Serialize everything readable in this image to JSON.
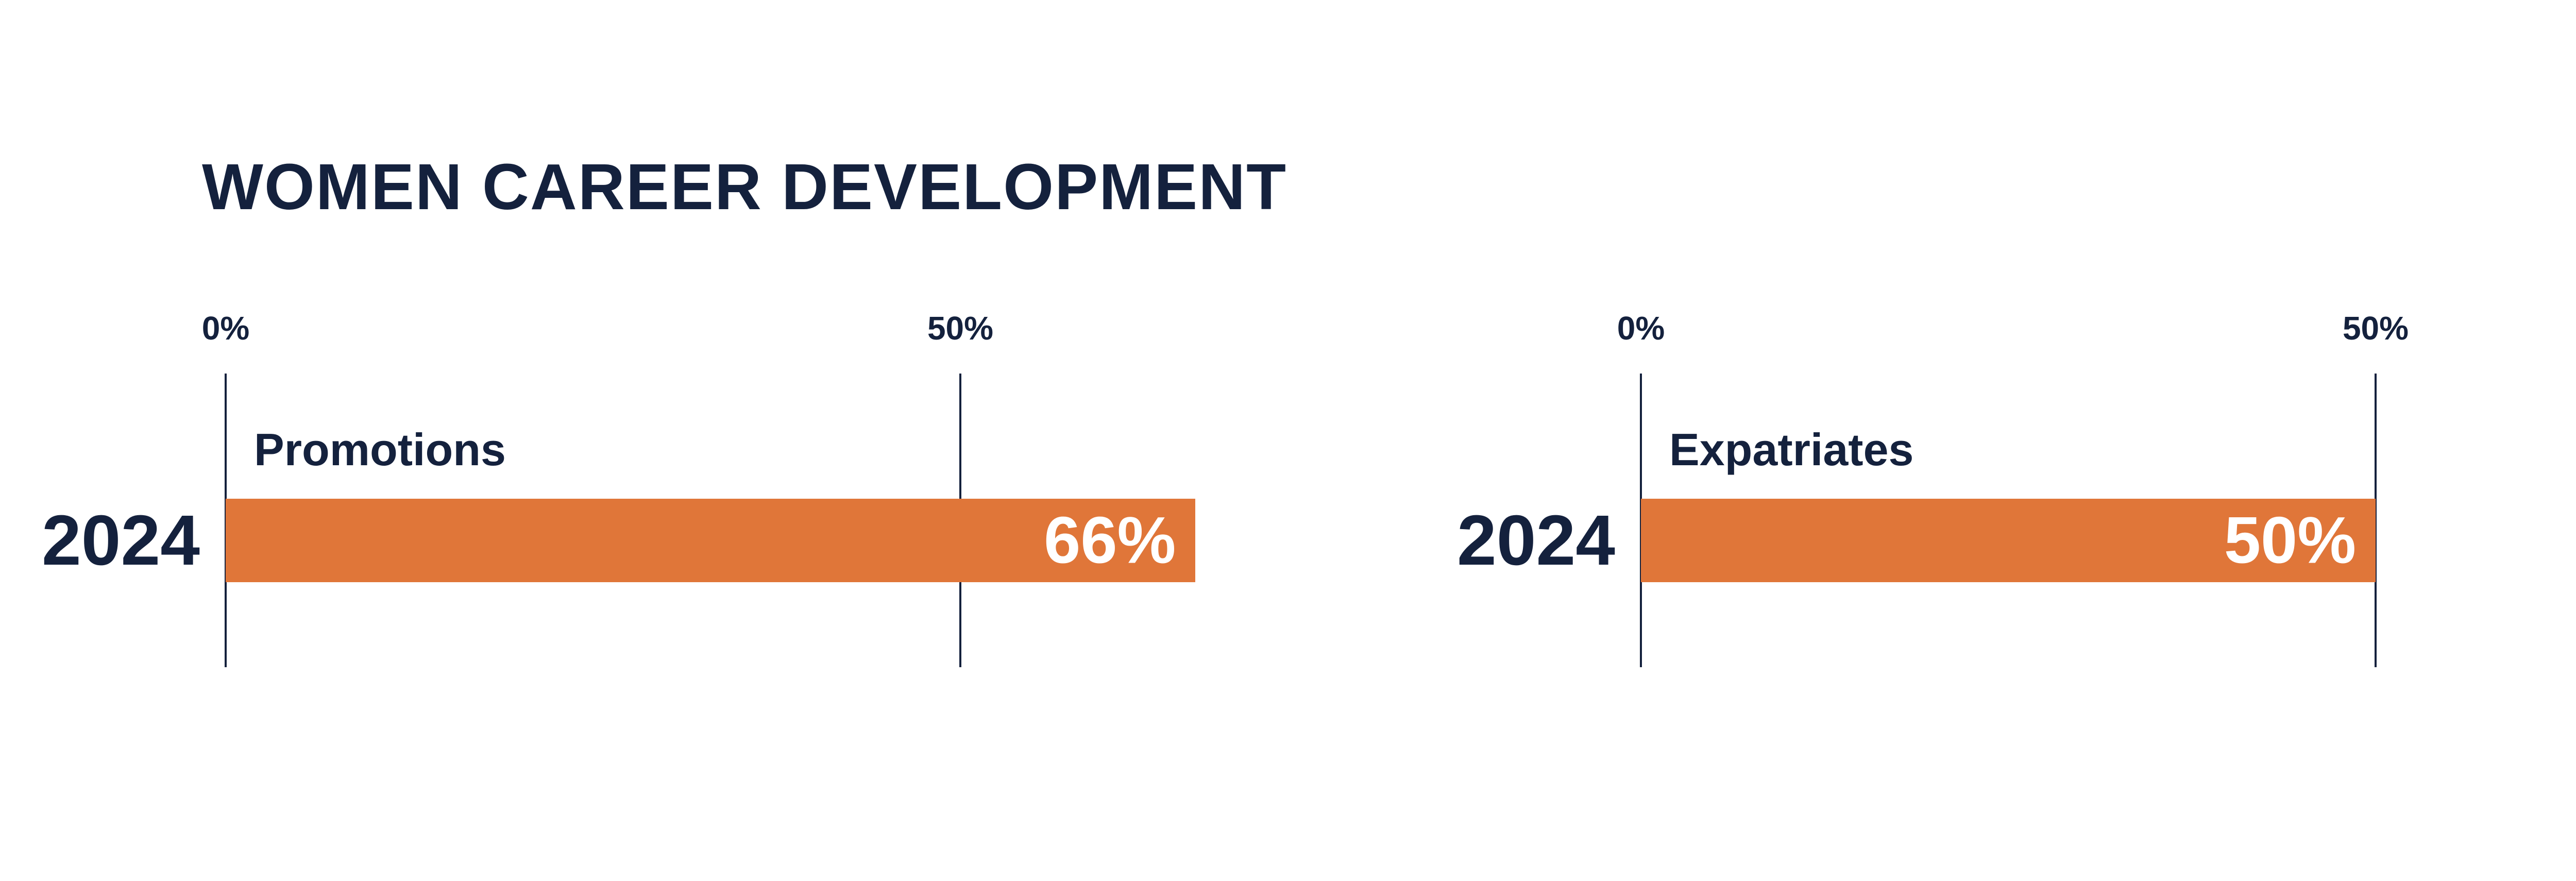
{
  "title": "WOMEN CAREER DEVELOPMENT",
  "colors": {
    "bar": "#e07639",
    "text": "#14213d",
    "value_text": "#ffffff"
  },
  "chart_data": [
    {
      "type": "bar",
      "orientation": "horizontal",
      "title": "Promotions",
      "categories": [
        "2024"
      ],
      "values": [
        66
      ],
      "value_labels": [
        "66%"
      ],
      "ticks": [
        0,
        50
      ],
      "tick_labels": [
        "0%",
        "50%"
      ],
      "unit": "%"
    },
    {
      "type": "bar",
      "orientation": "horizontal",
      "title": "Expatriates",
      "categories": [
        "2024"
      ],
      "values": [
        50
      ],
      "value_labels": [
        "50%"
      ],
      "ticks": [
        0,
        50
      ],
      "tick_labels": [
        "0%",
        "50%"
      ],
      "unit": "%"
    }
  ]
}
